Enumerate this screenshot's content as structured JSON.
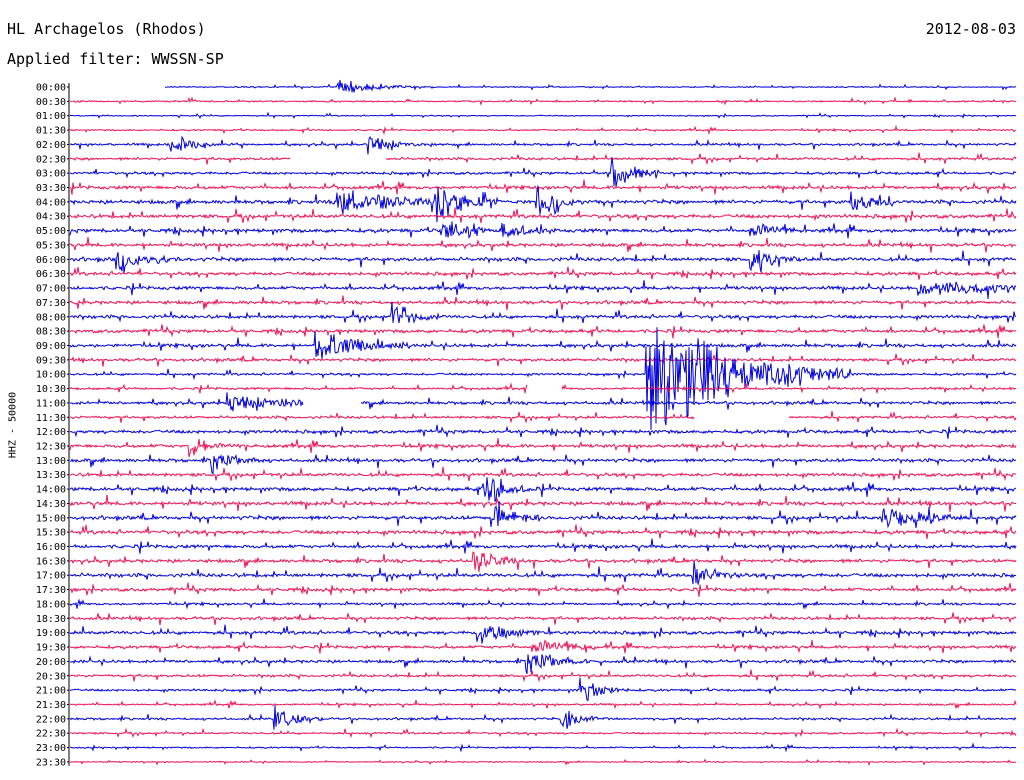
{
  "header": {
    "station_title": "HL Archagelos (Rhodos)",
    "date": "2012-08-03",
    "filter_text": "Applied filter: WWSSN-SP"
  },
  "axis": {
    "side_label": "HHZ - 50000"
  },
  "colors": {
    "trace_a": "#0000dd",
    "trace_b": "#ee1155",
    "axis": "#000000",
    "background": "#ffffff"
  },
  "chart_data": {
    "type": "line",
    "description_type": "helicorder",
    "ylabel": "HHZ - 50000",
    "row_labels": [
      "00:00",
      "00:30",
      "01:00",
      "01:30",
      "02:00",
      "02:30",
      "03:00",
      "03:30",
      "04:00",
      "04:30",
      "05:00",
      "05:30",
      "06:00",
      "06:30",
      "07:00",
      "07:30",
      "08:00",
      "08:30",
      "09:00",
      "09:30",
      "10:00",
      "10:30",
      "11:00",
      "11:30",
      "12:00",
      "12:30",
      "13:00",
      "13:30",
      "14:00",
      "14:30",
      "15:00",
      "15:30",
      "16:00",
      "16:30",
      "17:00",
      "17:30",
      "18:00",
      "18:30",
      "19:00",
      "19:30",
      "20:00",
      "20:30",
      "21:00",
      "21:30",
      "22:00",
      "22:30",
      "23:00",
      "23:30"
    ],
    "row_minutes": 30,
    "grid": false,
    "row_color_cycle": [
      "trace_a",
      "trace_b"
    ],
    "noise_level_by_row": [
      0.3,
      0.4,
      0.3,
      0.4,
      0.6,
      0.7,
      0.7,
      0.9,
      1.0,
      1.0,
      1.0,
      0.9,
      1.0,
      0.9,
      0.9,
      0.9,
      0.9,
      0.9,
      0.9,
      0.8,
      0.6,
      0.6,
      0.8,
      0.7,
      0.9,
      0.9,
      0.9,
      0.9,
      1.0,
      1.0,
      1.0,
      1.0,
      0.9,
      0.9,
      1.0,
      0.9,
      0.6,
      0.8,
      0.9,
      0.8,
      0.8,
      0.7,
      0.6,
      0.5,
      0.6,
      0.5,
      0.4,
      0.3
    ],
    "events": [
      {
        "row": 0,
        "minute": 8.5,
        "amplitude": 10,
        "duration_min": 1.0
      },
      {
        "row": 4,
        "minute": 3.2,
        "amplitude": 12,
        "duration_min": 0.6
      },
      {
        "row": 4,
        "minute": 9.5,
        "amplitude": 14,
        "duration_min": 0.6
      },
      {
        "row": 6,
        "minute": 17.2,
        "amplitude": 20,
        "duration_min": 0.6
      },
      {
        "row": 8,
        "minute": 8.5,
        "amplitude": 16,
        "duration_min": 1.4
      },
      {
        "row": 8,
        "minute": 11.6,
        "amplitude": 26,
        "duration_min": 0.8
      },
      {
        "row": 8,
        "minute": 14.8,
        "amplitude": 18,
        "duration_min": 0.6
      },
      {
        "row": 8,
        "minute": 24.8,
        "amplitude": 14,
        "duration_min": 0.6
      },
      {
        "row": 10,
        "minute": 11.8,
        "amplitude": 16,
        "duration_min": 0.6
      },
      {
        "row": 10,
        "minute": 13.7,
        "amplitude": 14,
        "duration_min": 0.6
      },
      {
        "row": 10,
        "minute": 21.6,
        "amplitude": 18,
        "duration_min": 0.6
      },
      {
        "row": 12,
        "minute": 1.5,
        "amplitude": 14,
        "duration_min": 0.7
      },
      {
        "row": 12,
        "minute": 21.6,
        "amplitude": 16,
        "duration_min": 0.6
      },
      {
        "row": 14,
        "minute": 26.9,
        "amplitude": 12,
        "duration_min": 1.6
      },
      {
        "row": 16,
        "minute": 10.2,
        "amplitude": 18,
        "duration_min": 0.6
      },
      {
        "row": 18,
        "minute": 7.8,
        "amplitude": 22,
        "duration_min": 1.2
      },
      {
        "row": 20,
        "minute": 19.6,
        "amplitude": 14,
        "duration_min": 0.6
      },
      {
        "row": 20,
        "minute": 18.3,
        "amplitude": 70,
        "duration_min": 2.6
      },
      {
        "row": 22,
        "minute": 5.0,
        "amplitude": 12,
        "duration_min": 1.4
      },
      {
        "row": 25,
        "minute": 3.8,
        "amplitude": 14,
        "duration_min": 0.6
      },
      {
        "row": 26,
        "minute": 4.5,
        "amplitude": 14,
        "duration_min": 0.6
      },
      {
        "row": 28,
        "minute": 13.2,
        "amplitude": 18,
        "duration_min": 0.6
      },
      {
        "row": 30,
        "minute": 13.4,
        "amplitude": 14,
        "duration_min": 0.6
      },
      {
        "row": 30,
        "minute": 25.8,
        "amplitude": 14,
        "duration_min": 1.0
      },
      {
        "row": 33,
        "minute": 12.8,
        "amplitude": 16,
        "duration_min": 0.6
      },
      {
        "row": 34,
        "minute": 19.8,
        "amplitude": 16,
        "duration_min": 0.6
      },
      {
        "row": 38,
        "minute": 12.9,
        "amplitude": 14,
        "duration_min": 0.8
      },
      {
        "row": 39,
        "minute": 14.7,
        "amplitude": 16,
        "duration_min": 0.8
      },
      {
        "row": 40,
        "minute": 14.5,
        "amplitude": 16,
        "duration_min": 0.8
      },
      {
        "row": 42,
        "minute": 16.2,
        "amplitude": 16,
        "duration_min": 0.6
      },
      {
        "row": 44,
        "minute": 6.5,
        "amplitude": 18,
        "duration_min": 0.6
      },
      {
        "row": 44,
        "minute": 15.6,
        "amplitude": 14,
        "duration_min": 0.6
      }
    ],
    "gaps": [
      {
        "row": 0,
        "start_minute": 0,
        "end_minute": 3.0
      },
      {
        "row": 5,
        "start_minute": 7.0,
        "end_minute": 10.0
      },
      {
        "row": 21,
        "start_minute": 14.5,
        "end_minute": 15.6
      },
      {
        "row": 22,
        "start_minute": 7.4,
        "end_minute": 9.2
      },
      {
        "row": 23,
        "start_minute": 19.8,
        "end_minute": 22.8
      }
    ]
  }
}
